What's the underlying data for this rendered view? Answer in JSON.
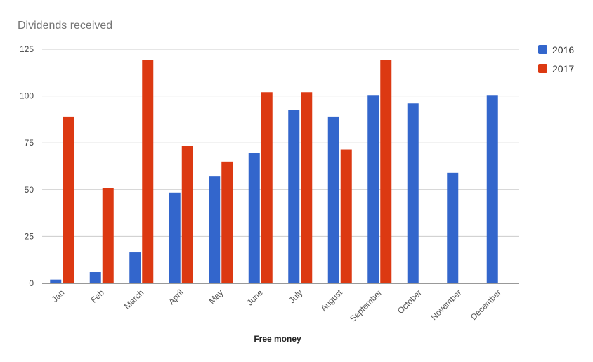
{
  "chart_data": {
    "type": "bar",
    "title": "Dividends received",
    "xlabel": "Free money",
    "ylabel": "",
    "ylim": [
      0,
      125
    ],
    "yticks": [
      0,
      25,
      50,
      75,
      100,
      125
    ],
    "grid": true,
    "legend_position": "right",
    "categories": [
      "Jan",
      "Feb",
      "March",
      "April",
      "May",
      "June",
      "July",
      "August",
      "September",
      "October",
      "November",
      "December"
    ],
    "series": [
      {
        "name": "2016",
        "color": "#3366cc",
        "values": [
          2,
          6,
          16.5,
          48.5,
          57,
          69.5,
          92.5,
          89,
          100.5,
          96,
          59,
          100.5
        ]
      },
      {
        "name": "2017",
        "color": "#dc3912",
        "values": [
          89,
          51,
          119,
          73.5,
          65,
          102,
          102,
          71.5,
          119,
          null,
          null,
          null
        ]
      }
    ]
  }
}
